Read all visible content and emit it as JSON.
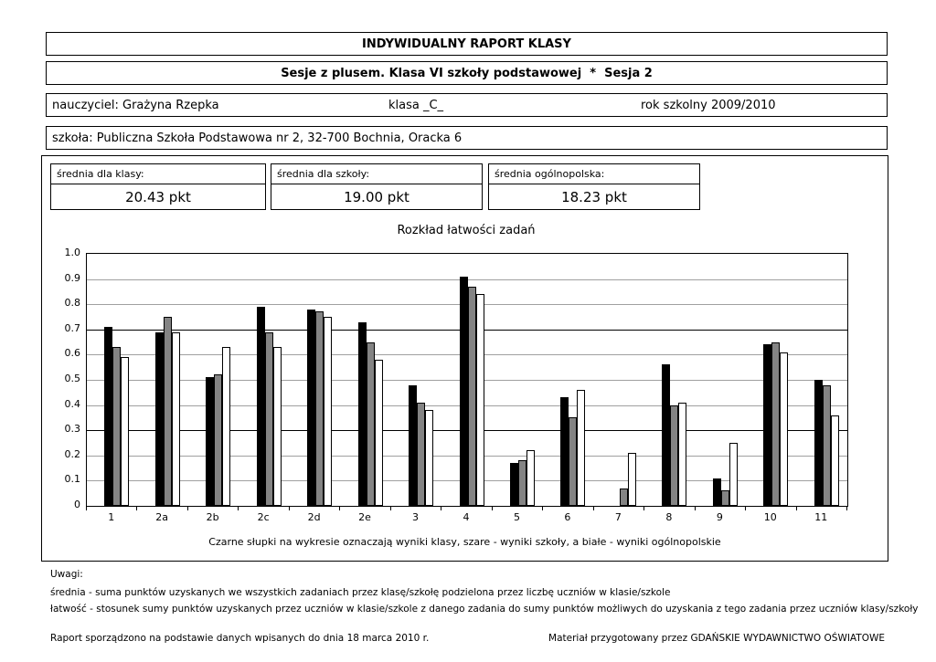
{
  "header": {
    "title": "INDYWIDUALNY RAPORT KLASY",
    "subtitle": "Sesje z plusem. Klasa VI szkoły podstawowej  *  Sesja 2",
    "teacher": "nauczyciel: Grażyna Rzepka",
    "class_field": "klasa _C_",
    "school_year": "rok szkolny 2009/2010",
    "school": "szkoła: Publiczna Szkoła Podstawowa nr 2, 32-700 Bochnia, Oracka 6"
  },
  "averages": [
    {
      "label": "średnia dla klasy:",
      "value": "20.43 pkt"
    },
    {
      "label": "średnia dla szkoły:",
      "value": "19.00 pkt"
    },
    {
      "label": "średnia ogólnopolska:",
      "value": "18.23 pkt"
    }
  ],
  "chart_data": {
    "type": "bar",
    "title": "Rozkład łatwości zadań",
    "categories": [
      "1",
      "2a",
      "2b",
      "2c",
      "2d",
      "2e",
      "3",
      "4",
      "5",
      "6",
      "7",
      "8",
      "9",
      "10",
      "11"
    ],
    "series": [
      {
        "name": "wyniki klasy",
        "color": "#000000",
        "values": [
          0.71,
          0.69,
          0.51,
          0.79,
          0.78,
          0.73,
          0.48,
          0.91,
          0.17,
          0.43,
          0,
          0.56,
          0.11,
          0.64,
          0.5
        ]
      },
      {
        "name": "wyniki szkoły",
        "color": "#848484",
        "values": [
          0.63,
          0.75,
          0.52,
          0.69,
          0.77,
          0.65,
          0.41,
          0.87,
          0.18,
          0.35,
          0.07,
          0.4,
          0.06,
          0.65,
          0.48
        ]
      },
      {
        "name": "wyniki ogólnopolskie",
        "color": "#ffffff",
        "values": [
          0.59,
          0.69,
          0.63,
          0.63,
          0.75,
          0.58,
          0.38,
          0.84,
          0.22,
          0.46,
          0.21,
          0.41,
          0.25,
          0.61,
          0.36
        ]
      }
    ],
    "ylim": [
      0,
      1.0
    ],
    "yticks": [
      "1.0",
      "0.9",
      "0.8",
      "0.7",
      "0.6",
      "0.5",
      "0.4",
      "0.3",
      "0.2",
      "0.1",
      "0"
    ],
    "grid": true,
    "emphasized_gridlines": [
      0.3,
      0.7
    ],
    "legend_position": "caption-below",
    "caption": "Czarne słupki na wykresie oznaczają wyniki klasy, szare - wyniki szkoły, a białe - wyniki ogólnopolskie"
  },
  "notes": {
    "heading": "Uwagi:",
    "items": [
      "średnia - suma punktów uzyskanych we wszystkich zadaniach przez klasę/szkołę podzielona przez liczbę uczniów w klasie/szkole",
      "łatwość - stosunek sumy punktów uzyskanych przez uczniów w klasie/szkole z danego zadania do sumy punktów możliwych do uzyskania z tego zadania przez uczniów klasy/szkoły"
    ]
  },
  "footer": {
    "left": "Raport sporządzono na podstawie danych wpisanych do dnia 18 marca 2010 r.",
    "right": "Materiał przygotowany przez GDAŃSKIE WYDAWNICTWO OŚWIATOWE"
  },
  "colors": {
    "bar_class": "#000000",
    "bar_school": "#848484",
    "bar_national": "#ffffff",
    "gridline": "#a0a0a0",
    "gridline_emphasis": "#000000",
    "border": "#000000"
  }
}
